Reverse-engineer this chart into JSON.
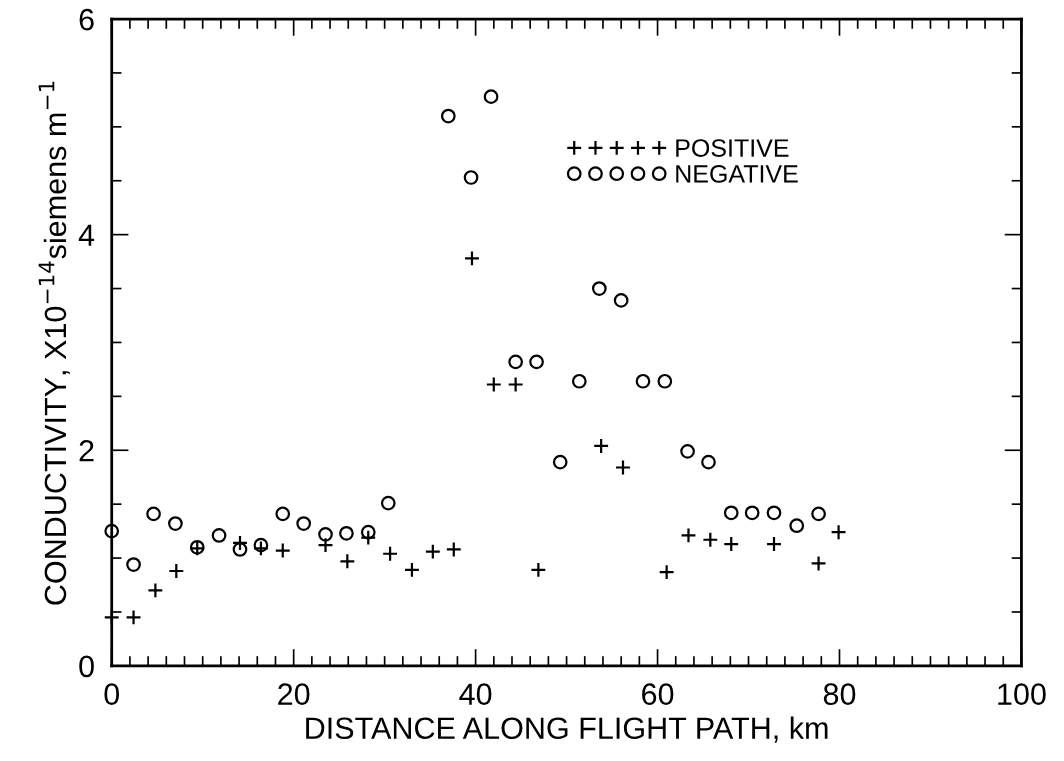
{
  "chart_data": {
    "type": "scatter",
    "xlabel": "DISTANCE ALONG FLIGHT PATH, km",
    "ylabel": "CONDUCTIVITY, X10$^{−14}$siemens m$^{−1}$",
    "xlim": [
      0,
      100
    ],
    "xticks": [
      0,
      20,
      40,
      60,
      80,
      100
    ],
    "ylim": [
      0,
      6
    ],
    "yticks": [
      0,
      2,
      4,
      6
    ],
    "grid": false,
    "legend": "top right",
    "series": [
      {
        "name": "POSITIVE",
        "color": "#000000",
        "marker": "cross",
        "x": [
          0,
          2.4,
          4.8,
          7.1,
          9.4,
          14.1,
          16.4,
          18.8,
          23.5,
          25.9,
          28.2,
          30.6,
          33.0,
          35.3,
          37.6,
          39.6,
          42.0,
          44.4,
          46.9,
          53.8,
          56.2,
          61.0,
          63.4,
          65.8,
          68.1,
          72.8,
          77.7,
          79.9
        ],
        "values": [
          0.45,
          0.45,
          0.7,
          0.88,
          1.09,
          1.14,
          1.09,
          1.07,
          1.12,
          0.97,
          1.19,
          1.04,
          0.89,
          1.06,
          1.08,
          3.78,
          2.61,
          2.61,
          0.89,
          2.04,
          1.84,
          0.87,
          1.21,
          1.17,
          1.13,
          1.13,
          0.95,
          1.24
        ]
      },
      {
        "name": "NEGATIVE",
        "color": "#000000",
        "marker": "circle",
        "x": [
          0,
          2.4,
          4.6,
          7.0,
          9.4,
          11.8,
          14.1,
          16.4,
          18.8,
          21.1,
          23.5,
          25.8,
          28.2,
          30.4,
          37.0,
          39.5,
          41.7,
          44.4,
          46.7,
          49.3,
          51.4,
          53.6,
          56.0,
          58.4,
          60.8,
          63.3,
          65.6,
          68.1,
          70.4,
          72.8,
          75.3,
          77.7
        ],
        "values": [
          1.25,
          0.94,
          1.41,
          1.32,
          1.1,
          1.21,
          1.08,
          1.12,
          1.41,
          1.32,
          1.22,
          1.23,
          1.24,
          1.51,
          5.1,
          4.53,
          5.28,
          2.82,
          2.82,
          1.89,
          2.64,
          3.5,
          3.39,
          2.64,
          2.64,
          1.99,
          1.89,
          1.42,
          1.42,
          1.42,
          1.3,
          1.41
        ]
      }
    ]
  }
}
